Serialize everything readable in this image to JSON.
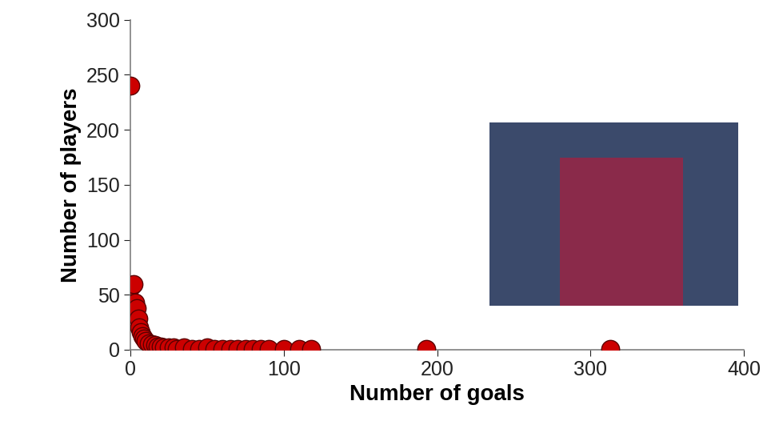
{
  "chart_data": {
    "type": "scatter",
    "x_label": "Number of goals",
    "y_label": "Number of players",
    "x": [
      0,
      1,
      2,
      3,
      4,
      5,
      6,
      7,
      8,
      9,
      10,
      12,
      14,
      16,
      18,
      20,
      22,
      25,
      28,
      30,
      35,
      40,
      45,
      50,
      55,
      60,
      65,
      70,
      75,
      80,
      85,
      90,
      100,
      110,
      118,
      193,
      313
    ],
    "values": [
      240,
      58,
      60,
      43,
      38,
      28,
      20,
      16,
      12,
      10,
      8,
      6,
      5,
      4,
      3,
      3,
      2,
      2,
      2,
      1,
      2,
      1,
      1,
      2,
      1,
      1,
      1,
      1,
      1,
      1,
      1,
      1,
      1,
      1,
      1,
      1,
      1
    ],
    "color": "#cc0000",
    "marker": "o",
    "xlim": [
      0,
      400
    ],
    "xticks": [
      0,
      100,
      200,
      300,
      400
    ],
    "ylim": [
      0,
      300
    ],
    "yticks": [
      0,
      50,
      100,
      150,
      200,
      250,
      300
    ],
    "grid": false
  }
}
